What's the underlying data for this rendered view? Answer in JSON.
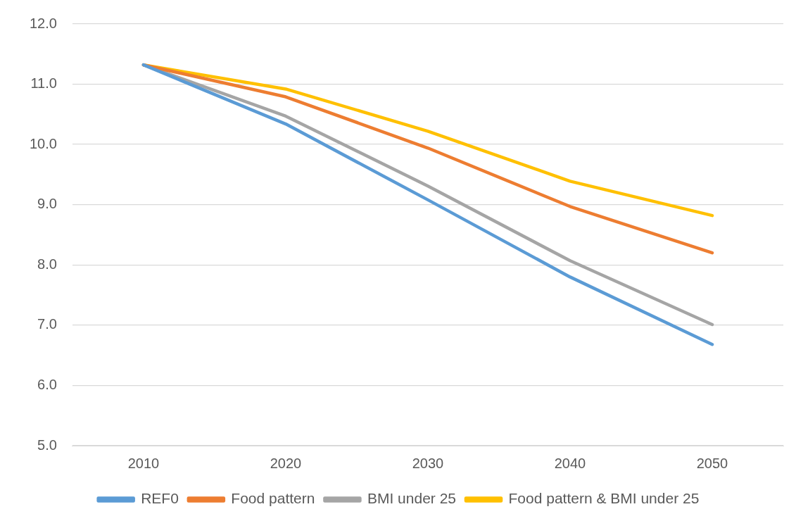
{
  "chart_data": {
    "type": "line",
    "categories": [
      "2010",
      "2020",
      "2030",
      "2040",
      "2050"
    ],
    "series": [
      {
        "name": "REF0",
        "color": "#5b9bd5",
        "values": [
          11.32,
          10.34,
          9.08,
          7.8,
          6.68
        ]
      },
      {
        "name": "Food pattern",
        "color": "#ed7d31",
        "values": [
          11.32,
          10.79,
          9.94,
          8.97,
          8.2
        ]
      },
      {
        "name": "BMI under 25",
        "color": "#a5a5a5",
        "values": [
          11.32,
          10.47,
          9.31,
          8.07,
          7.01
        ]
      },
      {
        "name": "Food pattern & BMI under 25",
        "color": "#ffc000",
        "values": [
          11.32,
          10.92,
          10.22,
          9.39,
          8.82
        ]
      }
    ],
    "ylim": [
      5,
      12
    ],
    "yticks": [
      {
        "value": 5,
        "label": "5.0"
      },
      {
        "value": 6,
        "label": "6.0"
      },
      {
        "value": 7,
        "label": "7.0"
      },
      {
        "value": 8,
        "label": "8.0"
      },
      {
        "value": 9,
        "label": "9.0"
      },
      {
        "value": 10,
        "label": "10.0"
      },
      {
        "value": 11,
        "label": "11.0"
      },
      {
        "value": 12,
        "label": "12.0"
      }
    ],
    "grid": "y",
    "legend": "bottom",
    "marker": "none",
    "line_style": "solid"
  }
}
